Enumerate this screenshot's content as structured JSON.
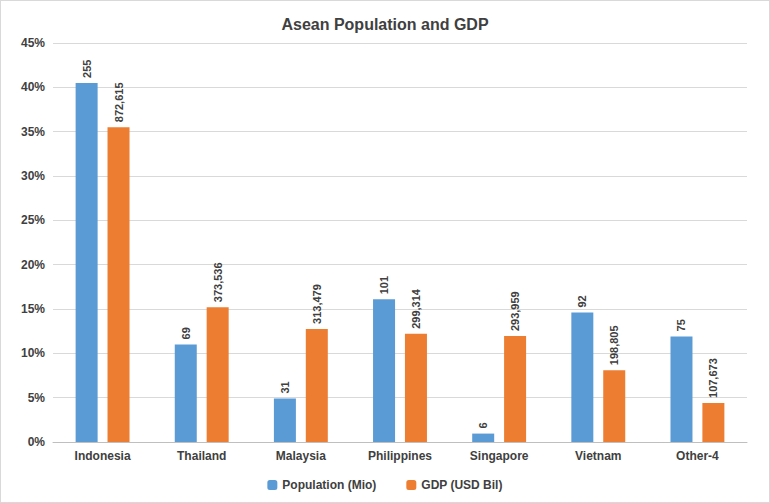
{
  "chart_data": {
    "type": "bar",
    "title": "Asean Population and GDP",
    "categories": [
      "Indonesia",
      "Thailand",
      "Malaysia",
      "Philippines",
      "Singapore",
      "Vietnam",
      "Other-4"
    ],
    "series": [
      {
        "name": "Population (Mio)",
        "color": "#5b9bd5",
        "values": [
          40.5,
          11.0,
          4.9,
          16.1,
          0.95,
          14.6,
          11.9
        ],
        "amounts": [
          255,
          69,
          31,
          101,
          6,
          92,
          75
        ]
      },
      {
        "name": "GDP (USD Bil)",
        "color": "#ed7d31",
        "values": [
          35.5,
          15.2,
          12.75,
          12.2,
          11.95,
          8.1,
          4.4
        ],
        "amounts": [
          872615,
          373536,
          313479,
          299314,
          293959,
          198805,
          107673
        ]
      }
    ],
    "ylim": [
      0,
      45
    ],
    "yticks": [
      {
        "value": 0,
        "label": "0%"
      },
      {
        "value": 5,
        "label": "5%"
      },
      {
        "value": 10,
        "label": "10%"
      },
      {
        "value": 15,
        "label": "15%"
      },
      {
        "value": 20,
        "label": "20%"
      },
      {
        "value": 25,
        "label": "25%"
      },
      {
        "value": 30,
        "label": "30%"
      },
      {
        "value": 35,
        "label": "35%"
      },
      {
        "value": 40,
        "label": "40%"
      },
      {
        "value": 45,
        "label": "45%"
      }
    ],
    "grid": true,
    "legend": "bottom"
  }
}
